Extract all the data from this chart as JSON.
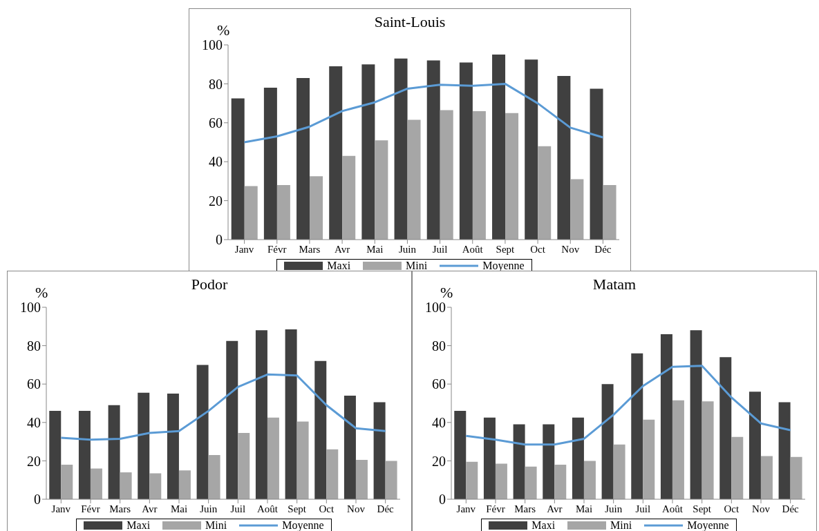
{
  "chart_data": [
    {
      "type": "bar",
      "title": "Saint-Louis",
      "ylabel": "%",
      "categories": [
        "Janv",
        "Févr",
        "Mars",
        "Avr",
        "Mai",
        "Juin",
        "Juil",
        "Août",
        "Sept",
        "Oct",
        "Nov",
        "Déc"
      ],
      "series": [
        {
          "name": "Maxi",
          "color": "#404040",
          "values": [
            72.5,
            78,
            83,
            89,
            90,
            93,
            92,
            91,
            95,
            92.5,
            84,
            77.5
          ]
        },
        {
          "name": "Mini",
          "color": "#a6a6a6",
          "values": [
            27.5,
            28,
            32.5,
            43,
            51,
            61.5,
            66.5,
            66,
            65,
            48,
            31,
            28
          ]
        },
        {
          "name": "Moyenne",
          "type": "line",
          "color": "#5b9bd5",
          "values": [
            50,
            53,
            58,
            66,
            70.5,
            77.5,
            79.5,
            79,
            80,
            70,
            57.5,
            52.5
          ]
        }
      ],
      "ylim": [
        0,
        100
      ],
      "yticks": [
        0,
        20,
        40,
        60,
        80,
        100
      ],
      "grid": false,
      "legend": "bottom"
    },
    {
      "type": "bar",
      "title": "Podor",
      "ylabel": "%",
      "categories": [
        "Janv",
        "Févr",
        "Mars",
        "Avr",
        "Mai",
        "Juin",
        "Juil",
        "Août",
        "Sept",
        "Oct",
        "Nov",
        "Déc"
      ],
      "series": [
        {
          "name": "Maxi",
          "color": "#404040",
          "values": [
            46,
            46,
            49,
            55.5,
            55,
            70,
            82.5,
            88,
            88.5,
            72,
            54,
            50.5
          ]
        },
        {
          "name": "Mini",
          "color": "#a6a6a6",
          "values": [
            18,
            16,
            14,
            13.5,
            15,
            23,
            34.5,
            42.5,
            40.5,
            26,
            20.5,
            20
          ]
        },
        {
          "name": "Moyenne",
          "type": "line",
          "color": "#5b9bd5",
          "values": [
            32,
            31,
            31.5,
            34.5,
            35.5,
            46,
            58.5,
            65,
            64.5,
            49,
            37,
            35.5
          ]
        }
      ],
      "ylim": [
        0,
        100
      ],
      "yticks": [
        0,
        20,
        40,
        60,
        80,
        100
      ],
      "grid": false,
      "legend": "bottom"
    },
    {
      "type": "bar",
      "title": "Matam",
      "ylabel": "%",
      "categories": [
        "Janv",
        "Févr",
        "Mars",
        "Avr",
        "Mai",
        "Juin",
        "Juil",
        "Août",
        "Sept",
        "Oct",
        "Nov",
        "Déc"
      ],
      "series": [
        {
          "name": "Maxi",
          "color": "#404040",
          "values": [
            46,
            42.5,
            39,
            39,
            42.5,
            60,
            76,
            86,
            88,
            74,
            56,
            50.5
          ]
        },
        {
          "name": "Mini",
          "color": "#a6a6a6",
          "values": [
            19.5,
            18.5,
            17,
            18,
            20,
            28.5,
            41.5,
            51.5,
            51,
            32.5,
            22.5,
            22
          ]
        },
        {
          "name": "Moyenne",
          "type": "line",
          "color": "#5b9bd5",
          "values": [
            33,
            31,
            28.5,
            28.5,
            31.5,
            44,
            59,
            69,
            69.5,
            53,
            39.5,
            36
          ]
        }
      ],
      "ylim": [
        0,
        100
      ],
      "yticks": [
        0,
        20,
        40,
        60,
        80,
        100
      ],
      "grid": false,
      "legend": "bottom"
    }
  ]
}
